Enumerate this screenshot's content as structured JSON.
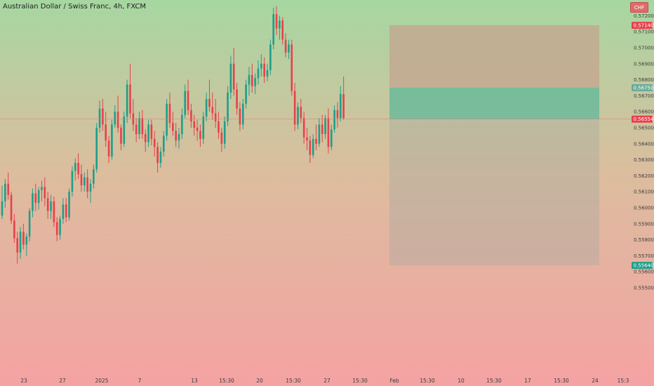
{
  "header": {
    "title": "Australian Dollar / Swiss Franc, 4h, FXCM",
    "currency": "CHF"
  },
  "colors": {
    "up": "#1f9e89",
    "down": "#e8404c",
    "target_zone": "#c4a48f",
    "stop_zone": "#5fb89a",
    "price_line": "#e57373"
  },
  "chart_data": {
    "type": "candlestick",
    "ylim": [
      0.55,
      0.5725
    ],
    "y_ticks": [
      "0.57200",
      "0.57100",
      "0.57000",
      "0.56900",
      "0.56800",
      "0.56700",
      "0.56600",
      "0.56500",
      "0.56400",
      "0.56300",
      "0.56200",
      "0.56100",
      "0.56000",
      "0.55900",
      "0.55800",
      "0.55700",
      "0.55600",
      "0.55500"
    ],
    "x_ticks": [
      "23",
      "27",
      "2025",
      "7",
      "13",
      "15:30",
      "20",
      "15:30",
      "27",
      "15:30",
      "Feb",
      "15:30",
      "10",
      "15:30",
      "17",
      "15:30",
      "24",
      "15:3"
    ],
    "price_labels": [
      {
        "value": "0.57140",
        "color": "#e8404c"
      },
      {
        "value": "0.56750",
        "color": "#6aaa98"
      },
      {
        "value": "0.56554",
        "color": "#e8404c"
      },
      {
        "value": "0.55640",
        "color": "#1f9e89"
      }
    ],
    "position": {
      "target": 0.5714,
      "entry": 0.5675,
      "stop": 0.5564,
      "current": 0.56554
    },
    "candles": [
      [
        0.5595,
        0.5614,
        0.5593,
        0.5604
      ],
      [
        0.5604,
        0.5618,
        0.56,
        0.5615
      ],
      [
        0.5615,
        0.5622,
        0.5605,
        0.5608
      ],
      [
        0.5608,
        0.561,
        0.559,
        0.5592
      ],
      [
        0.5592,
        0.5596,
        0.5578,
        0.5581
      ],
      [
        0.5581,
        0.5585,
        0.5565,
        0.5572
      ],
      [
        0.5572,
        0.5588,
        0.5568,
        0.5585
      ],
      [
        0.5585,
        0.559,
        0.5574,
        0.5577
      ],
      [
        0.5577,
        0.5584,
        0.557,
        0.5582
      ],
      [
        0.5582,
        0.56,
        0.5579,
        0.5598
      ],
      [
        0.5598,
        0.5612,
        0.5594,
        0.5609
      ],
      [
        0.5609,
        0.5615,
        0.5598,
        0.5603
      ],
      [
        0.5603,
        0.5613,
        0.5599,
        0.5611
      ],
      [
        0.5611,
        0.5617,
        0.5604,
        0.5613
      ],
      [
        0.5613,
        0.5619,
        0.5601,
        0.5606
      ],
      [
        0.5606,
        0.561,
        0.5593,
        0.5598
      ],
      [
        0.5598,
        0.5608,
        0.5593,
        0.5604
      ],
      [
        0.5604,
        0.5607,
        0.5588,
        0.5591
      ],
      [
        0.5591,
        0.5594,
        0.5579,
        0.5583
      ],
      [
        0.5583,
        0.5595,
        0.558,
        0.5593
      ],
      [
        0.5593,
        0.5606,
        0.559,
        0.5602
      ],
      [
        0.5602,
        0.5606,
        0.5591,
        0.5594
      ],
      [
        0.5594,
        0.5612,
        0.5592,
        0.561
      ],
      [
        0.561,
        0.5626,
        0.5607,
        0.5623
      ],
      [
        0.5623,
        0.5631,
        0.5617,
        0.5628
      ],
      [
        0.5628,
        0.5634,
        0.5618,
        0.5621
      ],
      [
        0.5621,
        0.5627,
        0.561,
        0.5614
      ],
      [
        0.5614,
        0.5622,
        0.561,
        0.5619
      ],
      [
        0.5619,
        0.5624,
        0.5606,
        0.561
      ],
      [
        0.561,
        0.5618,
        0.5603,
        0.5615
      ],
      [
        0.5615,
        0.5627,
        0.5612,
        0.5624
      ],
      [
        0.5624,
        0.5653,
        0.5622,
        0.565
      ],
      [
        0.565,
        0.5667,
        0.5647,
        0.5662
      ],
      [
        0.5662,
        0.5668,
        0.5648,
        0.5652
      ],
      [
        0.5652,
        0.566,
        0.5638,
        0.5642
      ],
      [
        0.5642,
        0.5645,
        0.5628,
        0.5632
      ],
      [
        0.5632,
        0.5655,
        0.563,
        0.5652
      ],
      [
        0.5652,
        0.5664,
        0.565,
        0.566
      ],
      [
        0.566,
        0.567,
        0.5647,
        0.565
      ],
      [
        0.565,
        0.5652,
        0.5636,
        0.564
      ],
      [
        0.564,
        0.566,
        0.5638,
        0.5657
      ],
      [
        0.5657,
        0.568,
        0.5653,
        0.5677
      ],
      [
        0.5677,
        0.569,
        0.5656,
        0.5659
      ],
      [
        0.5659,
        0.5668,
        0.5648,
        0.5652
      ],
      [
        0.5652,
        0.5656,
        0.5641,
        0.5646
      ],
      [
        0.5646,
        0.566,
        0.5643,
        0.5656
      ],
      [
        0.5656,
        0.5661,
        0.5643,
        0.5646
      ],
      [
        0.5646,
        0.5649,
        0.5635,
        0.5641
      ],
      [
        0.5641,
        0.5655,
        0.5638,
        0.5652
      ],
      [
        0.5652,
        0.5655,
        0.5639,
        0.5643
      ],
      [
        0.5643,
        0.5648,
        0.5632,
        0.5638
      ],
      [
        0.5638,
        0.5641,
        0.5622,
        0.5628
      ],
      [
        0.5628,
        0.5638,
        0.5625,
        0.5635
      ],
      [
        0.5635,
        0.5648,
        0.5632,
        0.5645
      ],
      [
        0.5645,
        0.5668,
        0.5642,
        0.5665
      ],
      [
        0.5665,
        0.5672,
        0.565,
        0.5653
      ],
      [
        0.5653,
        0.566,
        0.5645,
        0.5648
      ],
      [
        0.5648,
        0.5653,
        0.5638,
        0.5642
      ],
      [
        0.5642,
        0.565,
        0.5637,
        0.5646
      ],
      [
        0.5646,
        0.5662,
        0.5643,
        0.5658
      ],
      [
        0.5658,
        0.5677,
        0.5656,
        0.5673
      ],
      [
        0.5673,
        0.568,
        0.5658,
        0.5661
      ],
      [
        0.5661,
        0.5665,
        0.565,
        0.5654
      ],
      [
        0.5654,
        0.5658,
        0.5645,
        0.565
      ],
      [
        0.565,
        0.5655,
        0.5642,
        0.5648
      ],
      [
        0.5648,
        0.5652,
        0.5638,
        0.5643
      ],
      [
        0.5643,
        0.566,
        0.564,
        0.5657
      ],
      [
        0.5657,
        0.5672,
        0.5654,
        0.5668
      ],
      [
        0.5668,
        0.568,
        0.566,
        0.5663
      ],
      [
        0.5663,
        0.5672,
        0.5655,
        0.5659
      ],
      [
        0.5659,
        0.5668,
        0.565,
        0.5654
      ],
      [
        0.5654,
        0.566,
        0.5643,
        0.5647
      ],
      [
        0.5647,
        0.565,
        0.5635,
        0.564
      ],
      [
        0.564,
        0.5657,
        0.5637,
        0.5654
      ],
      [
        0.5654,
        0.5676,
        0.5651,
        0.5672
      ],
      [
        0.5672,
        0.5695,
        0.5668,
        0.569
      ],
      [
        0.569,
        0.57,
        0.567,
        0.5674
      ],
      [
        0.5674,
        0.5678,
        0.5658,
        0.5662
      ],
      [
        0.5662,
        0.5666,
        0.5648,
        0.5652
      ],
      [
        0.5652,
        0.5668,
        0.5649,
        0.5665
      ],
      [
        0.5665,
        0.568,
        0.5662,
        0.5677
      ],
      [
        0.5677,
        0.5688,
        0.567,
        0.5683
      ],
      [
        0.5683,
        0.569,
        0.5672,
        0.5676
      ],
      [
        0.5676,
        0.5684,
        0.5671,
        0.5681
      ],
      [
        0.5681,
        0.5692,
        0.5677,
        0.5687
      ],
      [
        0.5687,
        0.5696,
        0.5682,
        0.569
      ],
      [
        0.569,
        0.5694,
        0.5678,
        0.5682
      ],
      [
        0.5682,
        0.569,
        0.5679,
        0.5686
      ],
      [
        0.5686,
        0.5705,
        0.5683,
        0.5702
      ],
      [
        0.5702,
        0.5725,
        0.5699,
        0.5721
      ],
      [
        0.5721,
        0.5726,
        0.5708,
        0.5712
      ],
      [
        0.5712,
        0.572,
        0.5705,
        0.5717
      ],
      [
        0.5717,
        0.5719,
        0.5702,
        0.5705
      ],
      [
        0.5705,
        0.5709,
        0.5694,
        0.5697
      ],
      [
        0.5697,
        0.5705,
        0.5693,
        0.5702
      ],
      [
        0.5702,
        0.5705,
        0.567,
        0.5673
      ],
      [
        0.5673,
        0.5678,
        0.5648,
        0.5652
      ],
      [
        0.5652,
        0.5666,
        0.5649,
        0.5663
      ],
      [
        0.5663,
        0.5668,
        0.5653,
        0.5656
      ],
      [
        0.5656,
        0.566,
        0.564,
        0.5644
      ],
      [
        0.5644,
        0.565,
        0.5636,
        0.5642
      ],
      [
        0.5642,
        0.5645,
        0.5628,
        0.5633
      ],
      [
        0.5633,
        0.5646,
        0.5631,
        0.5643
      ],
      [
        0.5643,
        0.5652,
        0.5636,
        0.564
      ],
      [
        0.564,
        0.5656,
        0.5638,
        0.5652
      ],
      [
        0.5652,
        0.5658,
        0.5641,
        0.5646
      ],
      [
        0.5646,
        0.5658,
        0.5643,
        0.5656
      ],
      [
        0.5656,
        0.5662,
        0.5634,
        0.5638
      ],
      [
        0.5638,
        0.5652,
        0.5636,
        0.5649
      ],
      [
        0.5649,
        0.5664,
        0.5647,
        0.5661
      ],
      [
        0.5661,
        0.5666,
        0.565,
        0.5656
      ],
      [
        0.5656,
        0.5676,
        0.5654,
        0.5671
      ],
      [
        0.5671,
        0.5682,
        0.5655,
        0.5656
      ]
    ]
  }
}
